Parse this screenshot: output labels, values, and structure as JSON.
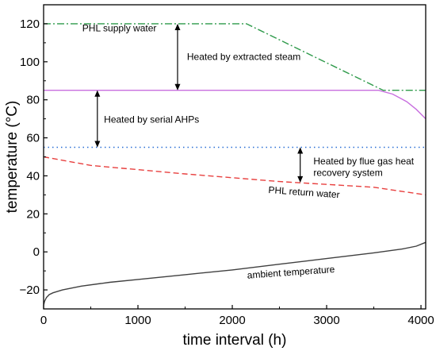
{
  "chart_data": {
    "type": "line",
    "xlabel": "time interval (h)",
    "ylabel": "temperature (°C)",
    "xlim": [
      0,
      4050
    ],
    "ylim": [
      -30,
      130
    ],
    "xticks": [
      0,
      1000,
      2000,
      3000,
      4000
    ],
    "yticks": [
      -20,
      0,
      20,
      40,
      60,
      80,
      100,
      120
    ],
    "grid": false,
    "legend": "none",
    "series": [
      {
        "name": "PHL supply water",
        "color": "#2e9a4a",
        "style": "dashdot",
        "x": [
          0,
          2150,
          3600,
          4050
        ],
        "y": [
          120,
          120,
          85,
          85
        ]
      },
      {
        "name": "",
        "color": "#c86fdf",
        "style": "solid",
        "x": [
          0,
          3550,
          3700,
          3850,
          3950,
          4050
        ],
        "y": [
          85,
          85,
          83,
          79,
          75,
          70
        ]
      },
      {
        "name": "",
        "color": "#2a6fd6",
        "style": "dotted",
        "x": [
          0,
          4050
        ],
        "y": [
          55,
          55
        ]
      },
      {
        "name": "PHL return water",
        "color": "#e8403f",
        "style": "dashed",
        "x": [
          0,
          500,
          1500,
          2500,
          3500,
          4050
        ],
        "y": [
          50,
          45.5,
          41,
          37,
          34,
          30
        ]
      },
      {
        "name": "ambient temperature",
        "color": "#404040",
        "style": "solid",
        "x": [
          0,
          10,
          30,
          60,
          100,
          200,
          400,
          700,
          1000,
          1500,
          2000,
          2500,
          3000,
          3500,
          3800,
          3950,
          4050
        ],
        "y": [
          -28,
          -26,
          -24,
          -22.5,
          -21.5,
          -20,
          -18,
          -16,
          -14.5,
          -12,
          -9.5,
          -6.5,
          -3.5,
          -0.5,
          1.5,
          3,
          5
        ]
      }
    ],
    "annotations": [
      {
        "text": "PHL supply water",
        "x": 410,
        "y": 116
      },
      {
        "text": "Heated by extracted steam",
        "x": 1520,
        "y": 101
      },
      {
        "text": "Heated by serial AHPs",
        "x": 640,
        "y": 68
      },
      {
        "text": "Heated by flue gas heat",
        "x": 2860,
        "y": 46
      },
      {
        "text": "recovery system",
        "x": 2860,
        "y": 40
      },
      {
        "text": "PHL return water",
        "x": 2380,
        "y": 31
      },
      {
        "text": "ambient temperature",
        "x": 2160,
        "y": -14
      }
    ],
    "arrows": [
      {
        "x": 1420,
        "y1": 120,
        "y2": 85
      },
      {
        "x": 570,
        "y1": 85,
        "y2": 55
      },
      {
        "x": 2720,
        "y1": 55,
        "y2": 36.5
      }
    ]
  }
}
